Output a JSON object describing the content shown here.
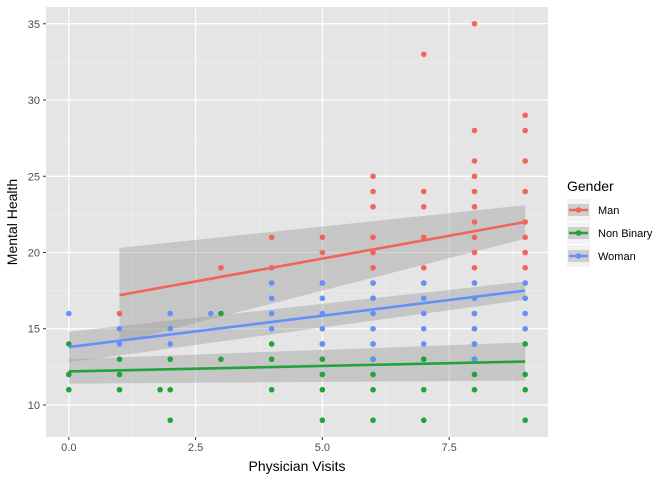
{
  "chart_data": {
    "type": "scatter",
    "title": "",
    "xlabel": "Physician Visits",
    "ylabel": "Mental Health",
    "xlim": [
      -0.45,
      9.45
    ],
    "ylim": [
      7.9,
      36.1
    ],
    "xticks": [
      0.0,
      2.5,
      5.0,
      7.5
    ],
    "xtick_labels": [
      "0.0",
      "2.5",
      "5.0",
      "7.5"
    ],
    "yticks": [
      10,
      15,
      20,
      25,
      30,
      35
    ],
    "ytick_labels": [
      "10",
      "15",
      "20",
      "25",
      "30",
      "35"
    ],
    "grid": true,
    "panel_background": "#e5e5e5",
    "legend": {
      "title": "Gender",
      "placement": "right",
      "entries": [
        "Man",
        "Non Binary",
        "Woman"
      ]
    },
    "series": [
      {
        "name": "Man",
        "color": "#f0655b",
        "points": [
          [
            1,
            16
          ],
          [
            3,
            19
          ],
          [
            4,
            21
          ],
          [
            4,
            19
          ],
          [
            5,
            21
          ],
          [
            5,
            20
          ],
          [
            5,
            18
          ],
          [
            6,
            25
          ],
          [
            6,
            24
          ],
          [
            6,
            23
          ],
          [
            6,
            21
          ],
          [
            6,
            20
          ],
          [
            6,
            19
          ],
          [
            6,
            18
          ],
          [
            6,
            17
          ],
          [
            7,
            33
          ],
          [
            7,
            24
          ],
          [
            7,
            23
          ],
          [
            7,
            21
          ],
          [
            7,
            19
          ],
          [
            7,
            18
          ],
          [
            8,
            35
          ],
          [
            8,
            28
          ],
          [
            8,
            26
          ],
          [
            8,
            25
          ],
          [
            8,
            24
          ],
          [
            8,
            23
          ],
          [
            8,
            22
          ],
          [
            8,
            21
          ],
          [
            8,
            20
          ],
          [
            8,
            19
          ],
          [
            8,
            18
          ],
          [
            8,
            16
          ],
          [
            8,
            15
          ],
          [
            9,
            29
          ],
          [
            9,
            28
          ],
          [
            9,
            26
          ],
          [
            9,
            24
          ],
          [
            9,
            22
          ],
          [
            9,
            21
          ],
          [
            9,
            20
          ],
          [
            9,
            19
          ],
          [
            9,
            18
          ],
          [
            9,
            17
          ]
        ],
        "fit": {
          "x": [
            1,
            9
          ],
          "y": [
            17.2,
            22.0
          ],
          "ci_lower": [
            14.1,
            20.9
          ],
          "ci_upper": [
            20.3,
            23.1
          ]
        }
      },
      {
        "name": "Non Binary",
        "color": "#1fa33a",
        "points": [
          [
            0,
            14
          ],
          [
            0,
            12
          ],
          [
            0,
            11
          ],
          [
            1,
            13
          ],
          [
            1,
            12
          ],
          [
            1,
            11
          ],
          [
            1.8,
            11
          ],
          [
            2,
            13
          ],
          [
            2,
            11
          ],
          [
            2,
            9
          ],
          [
            3,
            16
          ],
          [
            3,
            13
          ],
          [
            4,
            14
          ],
          [
            4,
            13
          ],
          [
            4,
            11
          ],
          [
            5,
            14
          ],
          [
            5,
            13
          ],
          [
            5,
            12
          ],
          [
            5,
            11
          ],
          [
            5,
            9
          ],
          [
            6,
            14
          ],
          [
            6,
            13
          ],
          [
            6,
            12
          ],
          [
            6,
            11
          ],
          [
            6,
            9
          ],
          [
            7,
            13
          ],
          [
            7,
            11
          ],
          [
            7,
            9
          ],
          [
            8,
            14
          ],
          [
            8,
            13
          ],
          [
            8,
            12
          ],
          [
            8,
            11
          ],
          [
            9,
            14
          ],
          [
            9,
            12
          ],
          [
            9,
            11
          ],
          [
            9,
            9
          ]
        ],
        "fit": {
          "x": [
            0,
            9
          ],
          "y": [
            12.2,
            12.85
          ],
          "ci_lower": [
            11.4,
            11.6
          ],
          "ci_upper": [
            13.0,
            14.1
          ]
        }
      },
      {
        "name": "Woman",
        "color": "#6391f7",
        "points": [
          [
            0,
            16
          ],
          [
            1,
            15
          ],
          [
            1,
            14
          ],
          [
            2,
            16
          ],
          [
            2,
            15
          ],
          [
            2,
            14
          ],
          [
            2.8,
            16
          ],
          [
            4,
            18
          ],
          [
            4,
            17
          ],
          [
            4,
            16
          ],
          [
            4,
            15
          ],
          [
            5,
            18
          ],
          [
            5,
            17
          ],
          [
            5,
            16
          ],
          [
            5,
            15
          ],
          [
            5,
            14
          ],
          [
            6,
            18
          ],
          [
            6,
            17
          ],
          [
            6,
            16
          ],
          [
            6,
            15
          ],
          [
            6,
            14
          ],
          [
            6,
            13
          ],
          [
            7,
            18
          ],
          [
            7,
            17
          ],
          [
            7,
            16
          ],
          [
            7,
            15
          ],
          [
            7,
            14
          ],
          [
            8,
            18
          ],
          [
            8,
            17
          ],
          [
            8,
            16
          ],
          [
            8,
            15
          ],
          [
            8,
            14
          ],
          [
            8,
            13
          ],
          [
            9,
            18
          ],
          [
            9,
            17
          ],
          [
            9,
            16
          ],
          [
            9,
            15
          ]
        ],
        "fit": {
          "x": [
            0,
            9
          ],
          "y": [
            13.8,
            17.5
          ],
          "ci_lower": [
            12.8,
            16.9
          ],
          "ci_upper": [
            14.8,
            18.1
          ]
        }
      }
    ]
  }
}
